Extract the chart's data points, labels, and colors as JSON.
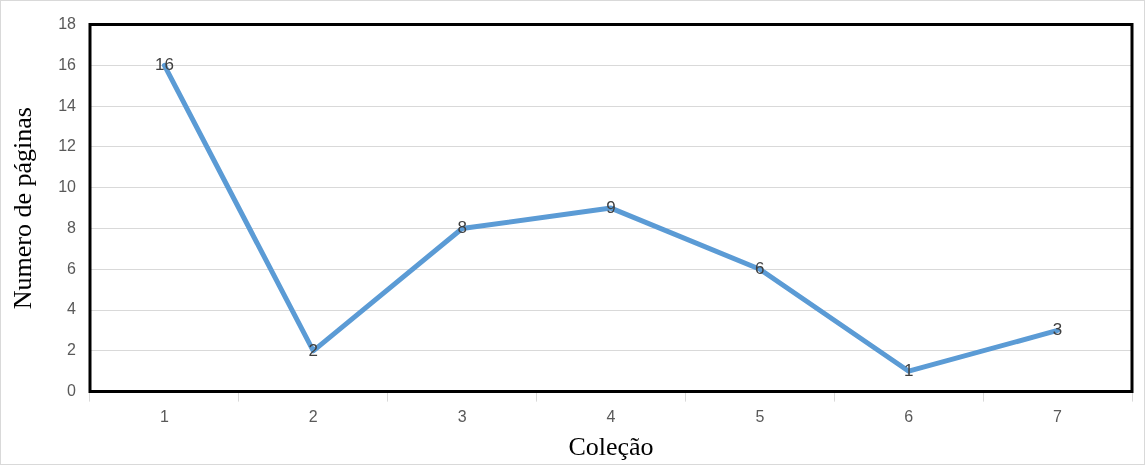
{
  "chart_data": {
    "type": "line",
    "xlabel": "Coleção",
    "ylabel": "Numero de páginas",
    "categories": [
      "1",
      "2",
      "3",
      "4",
      "5",
      "6",
      "7"
    ],
    "series": [
      {
        "color": "#5b9bd5",
        "values": [
          16,
          2,
          8,
          9,
          6,
          1,
          3
        ]
      }
    ],
    "ylim": [
      0,
      18
    ],
    "yticks": [
      0,
      2,
      4,
      6,
      8,
      10,
      12,
      14,
      16,
      18
    ],
    "grid": "y",
    "legend": false,
    "marker": "none",
    "line_style": "solid",
    "data_labels": true
  }
}
